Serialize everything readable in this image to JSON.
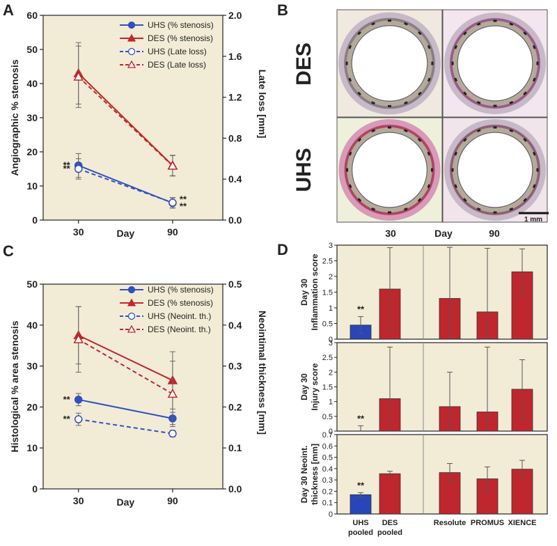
{
  "colors": {
    "uhs": "#3050c0",
    "des": "#c0262d",
    "panel_bg": "#f2ecd6",
    "bar_uhs": "#2846b8",
    "bar_des": "#c0262d",
    "stain_pink": "#d79ab8"
  },
  "panels": {
    "a": {
      "letter": "A"
    },
    "b": {
      "letter": "B",
      "row_labels": [
        "DES",
        "UHS"
      ],
      "col_labels": [
        "30",
        "90"
      ],
      "x_label": "Day",
      "scale_bar": "1 mm"
    },
    "c": {
      "letter": "C"
    },
    "d": {
      "letter": "D"
    }
  },
  "chart_data": [
    {
      "id": "A",
      "type": "line",
      "x": [
        30,
        90
      ],
      "x_ticks": [
        "30",
        "90"
      ],
      "xlabel": "Day",
      "ylabel": "Angiographic % stenosis",
      "ylim": [
        0,
        60
      ],
      "y_ticks": [
        "0",
        "10",
        "20",
        "30",
        "40",
        "50",
        "60"
      ],
      "y2label": "Late loss [mm]",
      "y2lim": [
        0,
        2.0
      ],
      "y2_ticks": [
        "0.0",
        "0.4",
        "0.8",
        "1.2",
        "1.6",
        "2.0"
      ],
      "series": [
        {
          "name": "UHS (% stenosis)",
          "axis": "left",
          "style": "solid-circle",
          "color": "#3050c0",
          "values": [
            16,
            5
          ],
          "err": [
            3.5,
            1.5
          ]
        },
        {
          "name": "DES (% stenosis)",
          "axis": "left",
          "style": "solid-triangle",
          "color": "#c0262d",
          "values": [
            43,
            16
          ],
          "err": [
            9,
            3
          ]
        },
        {
          "name": "UHS (Late loss)",
          "axis": "right",
          "style": "dashed-open-circle",
          "color": "#3050c0",
          "values": [
            0.5,
            0.17
          ],
          "err": [
            0.1,
            0.05
          ]
        },
        {
          "name": "DES (Late loss)",
          "axis": "right",
          "style": "dashed-open-triangle",
          "color": "#c0262d",
          "values": [
            1.4,
            0.53
          ],
          "err": [
            0.3,
            0.1
          ]
        }
      ],
      "annotations": [
        {
          "text": "**",
          "x": 30,
          "y": 16
        },
        {
          "text": "**",
          "x": 30,
          "y": 15
        },
        {
          "text": "**",
          "x": 90,
          "y": 6
        },
        {
          "text": "**",
          "x": 90,
          "y": 4
        }
      ],
      "legend": "top-right",
      "grid": false
    },
    {
      "id": "C",
      "type": "line",
      "x": [
        30,
        90
      ],
      "x_ticks": [
        "30",
        "90"
      ],
      "xlabel": "Day",
      "ylabel": "Histological % area stenosis",
      "ylim": [
        0,
        50
      ],
      "y_ticks": [
        "0",
        "10",
        "20",
        "30",
        "40",
        "50"
      ],
      "y2label": "Neointimal thickness [mm]",
      "y2lim": [
        0,
        0.5
      ],
      "y2_ticks": [
        "0.0",
        "0.1",
        "0.2",
        "0.3",
        "0.4",
        "0.5"
      ],
      "series": [
        {
          "name": "UHS (% stenosis)",
          "axis": "left",
          "style": "solid-circle",
          "color": "#3050c0",
          "values": [
            21.8,
            17.2
          ],
          "err": [
            1.5,
            1.5
          ]
        },
        {
          "name": "DES (% stenosis)",
          "axis": "left",
          "style": "solid-triangle",
          "color": "#c0262d",
          "values": [
            37.5,
            26.5
          ],
          "err": [
            7,
            7
          ]
        },
        {
          "name": "UHS (Neoint. th.)",
          "axis": "right",
          "style": "dashed-open-circle",
          "color": "#3050c0",
          "values": [
            0.17,
            0.135
          ],
          "err": [
            0.015,
            0.008
          ]
        },
        {
          "name": "DES (Neoint. th.)",
          "axis": "right",
          "style": "dashed-open-triangle",
          "color": "#c0262d",
          "values": [
            0.365,
            0.232
          ],
          "err": [
            0.08,
            0.08
          ]
        }
      ],
      "annotations": [
        {
          "text": "**",
          "x": 30,
          "y": 21.8
        },
        {
          "text": "**",
          "x": 30,
          "y": 17
        }
      ],
      "legend": "top-right",
      "grid": false
    },
    {
      "id": "D1",
      "type": "bar",
      "categories": [
        "UHS pooled",
        "DES pooled",
        "Resolute",
        "PROMUS",
        "XIENCE"
      ],
      "values": [
        0.45,
        1.6,
        1.3,
        0.87,
        2.15
      ],
      "err": [
        0.27,
        1.32,
        1.63,
        2.03,
        0.73
      ],
      "ylabel": "Day 30 Inflammation score",
      "ylim": [
        0,
        3
      ],
      "y_ticks": [
        "0",
        "0.5",
        "1",
        "1.5",
        "2",
        "2.5",
        "3"
      ],
      "annotations": [
        {
          "text": "**",
          "category": "UHS pooled"
        }
      ]
    },
    {
      "id": "D2",
      "type": "bar",
      "categories": [
        "UHS pooled",
        "DES pooled",
        "Resolute",
        "PROMUS",
        "XIENCE"
      ],
      "values": [
        0.0,
        1.1,
        0.83,
        0.65,
        1.42
      ],
      "err": [
        0.18,
        1.75,
        1.17,
        2.2,
        1.0
      ],
      "ylabel": "Day 30 Injury score",
      "ylim": [
        0,
        3
      ],
      "y_ticks": [
        "0",
        "0.5",
        "1",
        "1.5",
        "2",
        "2.5",
        "3"
      ],
      "annotations": [
        {
          "text": "**",
          "category": "UHS pooled"
        }
      ]
    },
    {
      "id": "D3",
      "type": "bar",
      "categories": [
        "UHS pooled",
        "DES pooled",
        "Resolute",
        "PROMUS",
        "XIENCE"
      ],
      "category_labels": [
        [
          "UHS",
          "pooled"
        ],
        [
          "DES",
          "pooled"
        ],
        [
          "Resolute"
        ],
        [
          "PROMUS"
        ],
        [
          "XIENCE"
        ]
      ],
      "values": [
        0.17,
        0.355,
        0.365,
        0.31,
        0.395
      ],
      "err": [
        0.018,
        0.022,
        0.08,
        0.105,
        0.078
      ],
      "ylabel": "Day 30 Neoint. thickness [mm]",
      "ylim": [
        0,
        0.7
      ],
      "y_ticks": [
        "0",
        "0.1",
        "0.2",
        "0.3",
        "0.4",
        "0.5",
        "0.6",
        "0.7"
      ],
      "annotations": [
        {
          "text": "**",
          "category": "UHS pooled"
        }
      ]
    }
  ]
}
